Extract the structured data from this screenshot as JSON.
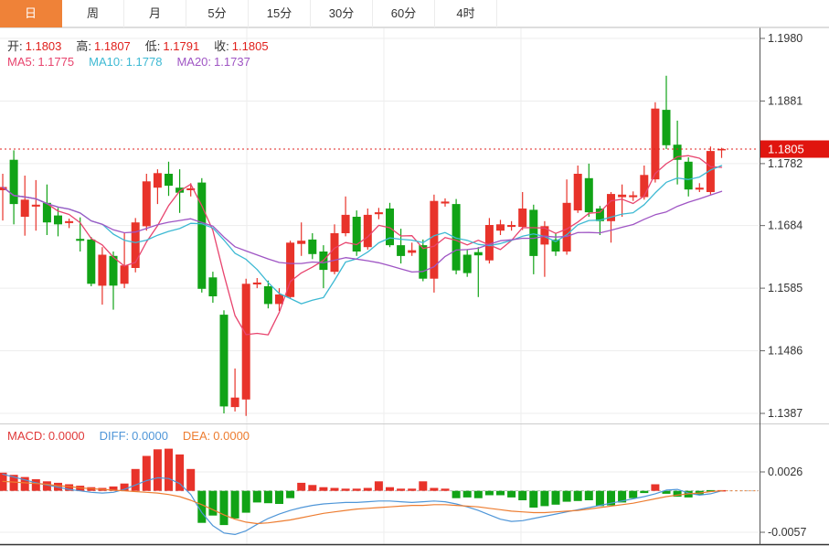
{
  "toolbar": {
    "tabs": [
      {
        "key": "day",
        "label": "日",
        "active": true
      },
      {
        "key": "week",
        "label": "周",
        "active": false
      },
      {
        "key": "month",
        "label": "月",
        "active": false
      },
      {
        "key": "5min",
        "label": "5分",
        "active": false
      },
      {
        "key": "15min",
        "label": "15分",
        "active": false
      },
      {
        "key": "30min",
        "label": "30分",
        "active": false
      },
      {
        "key": "60min",
        "label": "60分",
        "active": false
      },
      {
        "key": "4hour",
        "label": "4时",
        "active": false
      }
    ]
  },
  "main_legend": {
    "ohlc": [
      {
        "key": "open",
        "label": "开:",
        "value": "1.1803"
      },
      {
        "key": "high",
        "label": "高:",
        "value": "1.1807"
      },
      {
        "key": "low",
        "label": "低:",
        "value": "1.1791"
      },
      {
        "key": "close",
        "label": "收:",
        "value": "1.1805"
      }
    ],
    "ma": [
      {
        "key": "ma5",
        "label": "MA5:",
        "value": "1.1775",
        "color": "#e8446e"
      },
      {
        "key": "ma10",
        "label": "MA10:",
        "value": "1.1778",
        "color": "#3db9d3"
      },
      {
        "key": "ma20",
        "label": "MA20:",
        "value": "1.1737",
        "color": "#9f55c4"
      }
    ]
  },
  "macd_legend": [
    {
      "key": "macd",
      "label": "MACD:",
      "value": "0.0000",
      "color": "#e03a3a"
    },
    {
      "key": "diff",
      "label": "DIFF:",
      "value": "0.0000",
      "color": "#4f96d8"
    },
    {
      "key": "dea",
      "label": "DEA:",
      "value": "0.0000",
      "color": "#ed7d31"
    }
  ],
  "price_axis": {
    "ticks": [
      "1.1980",
      "1.1881",
      "1.1782",
      "1.1684",
      "1.1585",
      "1.1486",
      "1.1387"
    ],
    "last_price": "1.1805"
  },
  "macd_axis": {
    "ticks": [
      "0.0026",
      "-0.0057"
    ]
  },
  "colors": {
    "up": "#e8332a",
    "down": "#11a316",
    "ma5": "#e8446e",
    "ma10": "#3db9d3",
    "ma20": "#9f55c4",
    "diff": "#4f96d8",
    "dea": "#ed7d31",
    "grid": "#ededed",
    "axis_border": "#555555",
    "axis_text": "#333333",
    "last_price_line": "#e0201c",
    "last_price_box": "#e0150f",
    "zero_line": "#bbbbbb",
    "tab_active_bg": "#ef8238"
  },
  "chart_data": {
    "type": "candlestick",
    "title": "EUR/USD daily K-line with MA(5,10,20) and MACD sub-chart",
    "price_range": {
      "max": 1.198,
      "min": 1.1387
    },
    "axis_ticks_price": [
      1.198,
      1.1881,
      1.1782,
      1.1684,
      1.1585,
      1.1486,
      1.1387
    ],
    "last_price": 1.1805,
    "ma_periods": [
      5,
      10,
      20
    ],
    "candles_ohlc": [
      [
        1.174,
        1.1766,
        1.1692,
        1.1745
      ],
      [
        1.1788,
        1.1803,
        1.1686,
        1.1718
      ],
      [
        1.1698,
        1.1763,
        1.1668,
        1.1725
      ],
      [
        1.1714,
        1.1756,
        1.1676,
        1.1717
      ],
      [
        1.172,
        1.1749,
        1.1669,
        1.1689
      ],
      [
        1.17,
        1.1712,
        1.1667,
        1.1686
      ],
      [
        1.1688,
        1.1695,
        1.168,
        1.1691
      ],
      [
        1.1663,
        1.1697,
        1.1643,
        1.166
      ],
      [
        1.1662,
        1.1666,
        1.1588,
        1.1592
      ],
      [
        1.1589,
        1.165,
        1.1559,
        1.1638
      ],
      [
        1.1636,
        1.1643,
        1.1551,
        1.1589
      ],
      [
        1.1592,
        1.1672,
        1.1585,
        1.1621
      ],
      [
        1.1617,
        1.1696,
        1.161,
        1.1689
      ],
      [
        1.1683,
        1.1766,
        1.1676,
        1.1754
      ],
      [
        1.1744,
        1.1773,
        1.1718,
        1.1767
      ],
      [
        1.1766,
        1.1785,
        1.1731,
        1.1747
      ],
      [
        1.1744,
        1.1773,
        1.1704,
        1.1736
      ],
      [
        1.174,
        1.1751,
        1.173,
        1.1743
      ],
      [
        1.1752,
        1.1759,
        1.1578,
        1.1584
      ],
      [
        1.1602,
        1.1611,
        1.1562,
        1.1572
      ],
      [
        1.1543,
        1.155,
        1.1387,
        1.1398
      ],
      [
        1.1397,
        1.1458,
        1.139,
        1.1412
      ],
      [
        1.1409,
        1.16,
        1.1383,
        1.1592
      ],
      [
        1.1591,
        1.1601,
        1.1585,
        1.1594
      ],
      [
        1.1588,
        1.1597,
        1.1553,
        1.156
      ],
      [
        1.156,
        1.1585,
        1.1549,
        1.1575
      ],
      [
        1.1571,
        1.166,
        1.1568,
        1.1657
      ],
      [
        1.1655,
        1.1689,
        1.1636,
        1.166
      ],
      [
        1.1662,
        1.1672,
        1.1631,
        1.1639
      ],
      [
        1.1643,
        1.1653,
        1.1585,
        1.1614
      ],
      [
        1.1611,
        1.1686,
        1.1607,
        1.1672
      ],
      [
        1.1672,
        1.173,
        1.1667,
        1.1701
      ],
      [
        1.1698,
        1.1708,
        1.1636,
        1.1643
      ],
      [
        1.165,
        1.1711,
        1.1646,
        1.1701
      ],
      [
        1.1702,
        1.1712,
        1.1694,
        1.1705
      ],
      [
        1.1711,
        1.172,
        1.165,
        1.1653
      ],
      [
        1.1653,
        1.1679,
        1.1624,
        1.1636
      ],
      [
        1.1641,
        1.1657,
        1.1636,
        1.1645
      ],
      [
        1.1653,
        1.1662,
        1.1596,
        1.16
      ],
      [
        1.16,
        1.1733,
        1.1578,
        1.1723
      ],
      [
        1.1719,
        1.1727,
        1.1714,
        1.1722
      ],
      [
        1.1718,
        1.1726,
        1.1607,
        1.1613
      ],
      [
        1.1638,
        1.1646,
        1.1603,
        1.1609
      ],
      [
        1.1642,
        1.165,
        1.1571,
        1.1637
      ],
      [
        1.1629,
        1.1696,
        1.1624,
        1.1685
      ],
      [
        1.1676,
        1.1693,
        1.1669,
        1.1686
      ],
      [
        1.1682,
        1.1691,
        1.1676,
        1.1685
      ],
      [
        1.1682,
        1.1737,
        1.1677,
        1.1711
      ],
      [
        1.1709,
        1.1717,
        1.1607,
        1.1636
      ],
      [
        1.1654,
        1.1691,
        1.1603,
        1.1683
      ],
      [
        1.1662,
        1.1672,
        1.1636,
        1.1643
      ],
      [
        1.1643,
        1.1757,
        1.1638,
        1.172
      ],
      [
        1.1708,
        1.1779,
        1.1704,
        1.1766
      ],
      [
        1.1759,
        1.1782,
        1.1698,
        1.1705
      ],
      [
        1.1711,
        1.1715,
        1.1669,
        1.1691
      ],
      [
        1.1691,
        1.1737,
        1.1657,
        1.1734
      ],
      [
        1.1729,
        1.1749,
        1.1698,
        1.1733
      ],
      [
        1.1729,
        1.1738,
        1.1723,
        1.1732
      ],
      [
        1.1729,
        1.1779,
        1.1725,
        1.1764
      ],
      [
        1.1757,
        1.1879,
        1.1752,
        1.1869
      ],
      [
        1.1867,
        1.1921,
        1.1805,
        1.1811
      ],
      [
        1.1812,
        1.185,
        1.1749,
        1.1788
      ],
      [
        1.1785,
        1.1792,
        1.173,
        1.1741
      ],
      [
        1.1741,
        1.1751,
        1.1737,
        1.1744
      ],
      [
        1.1737,
        1.1809,
        1.1733,
        1.1802
      ],
      [
        1.1803,
        1.1807,
        1.1791,
        1.1805
      ]
    ],
    "macd_panel": {
      "axis_ticks": [
        0.0026,
        -0.0057
      ],
      "hist": [
        0.0025,
        0.0022,
        0.0019,
        0.0016,
        0.0013,
        0.0011,
        0.0009,
        0.0007,
        0.0005,
        0.0004,
        0.0006,
        0.001,
        0.003,
        0.0048,
        0.0057,
        0.0058,
        0.005,
        0.003,
        -0.0044,
        -0.0034,
        -0.0047,
        -0.0038,
        -0.003,
        -0.0016,
        -0.0017,
        -0.0018,
        -0.001,
        0.0011,
        0.0008,
        0.0005,
        0.0004,
        0.0003,
        0.0003,
        0.0004,
        0.0013,
        0.0005,
        0.0003,
        0.0003,
        0.0013,
        0.0004,
        0.0003,
        -0.001,
        -0.0009,
        -0.001,
        -0.0006,
        -0.0006,
        -0.0009,
        -0.0013,
        -0.0023,
        -0.0021,
        -0.0019,
        -0.0015,
        -0.0014,
        -0.0013,
        -0.0021,
        -0.002,
        -0.0016,
        -0.001,
        -0.0003,
        0.0009,
        -0.0004,
        -0.0008,
        -0.0009,
        -0.0005,
        -0.0001,
        0.0
      ],
      "diff": [
        0.0023,
        0.0019,
        0.0015,
        0.0011,
        0.0008,
        0.0005,
        0.0002,
        0.0,
        -0.0002,
        -0.0003,
        -0.0002,
        0.0002,
        0.0008,
        0.0014,
        0.0018,
        0.0017,
        0.001,
        -0.0005,
        -0.003,
        -0.0048,
        -0.0058,
        -0.006,
        -0.0055,
        -0.0046,
        -0.0038,
        -0.0032,
        -0.0027,
        -0.0023,
        -0.002,
        -0.0018,
        -0.0017,
        -0.0016,
        -0.0016,
        -0.0015,
        -0.0014,
        -0.0014,
        -0.0015,
        -0.0016,
        -0.0015,
        -0.0014,
        -0.0015,
        -0.0018,
        -0.0022,
        -0.0027,
        -0.0033,
        -0.0039,
        -0.0042,
        -0.0041,
        -0.0038,
        -0.0035,
        -0.0032,
        -0.0029,
        -0.0026,
        -0.0023,
        -0.002,
        -0.0017,
        -0.0014,
        -0.0011,
        -0.0008,
        -0.0004,
        0.0001,
        0.0002,
        -0.0003,
        -0.0006,
        -0.0004,
        0.0
      ],
      "dea": [
        0.0013,
        0.0012,
        0.0011,
        0.001,
        0.0009,
        0.0007,
        0.0006,
        0.0004,
        0.0003,
        0.0002,
        0.0001,
        0.0,
        -0.0001,
        -0.0002,
        -0.0003,
        -0.0005,
        -0.0008,
        -0.0013,
        -0.0019,
        -0.0026,
        -0.0033,
        -0.0039,
        -0.0043,
        -0.0045,
        -0.0044,
        -0.0042,
        -0.004,
        -0.0037,
        -0.0034,
        -0.0031,
        -0.0029,
        -0.0027,
        -0.0025,
        -0.0024,
        -0.0023,
        -0.0022,
        -0.0021,
        -0.002,
        -0.002,
        -0.0019,
        -0.0019,
        -0.002,
        -0.0021,
        -0.0022,
        -0.0024,
        -0.0026,
        -0.0028,
        -0.0029,
        -0.003,
        -0.003,
        -0.0029,
        -0.0028,
        -0.0027,
        -0.0025,
        -0.0023,
        -0.0021,
        -0.0019,
        -0.0017,
        -0.0014,
        -0.0011,
        -0.0008,
        -0.0006,
        -0.0004,
        -0.0003,
        -0.0001,
        0.0
      ]
    }
  }
}
